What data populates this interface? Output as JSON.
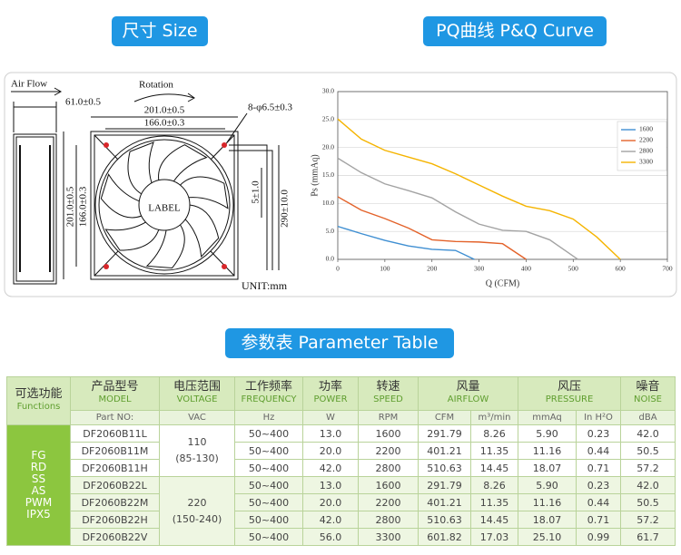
{
  "headings": {
    "size": "尺寸 Size",
    "curve": "PQ曲线 P&Q Curve",
    "table": "参数表 Parameter Table"
  },
  "drawing": {
    "air_flow": "Air Flow",
    "rotation": "Rotation",
    "depth": "61.0±0.5",
    "outer_width": "201.0±0.5",
    "hole_pitch_x": "166.0±0.3",
    "holes": "8-φ6.5±0.3",
    "outer_height": "201.0±0.5",
    "hole_pitch_y": "166.0±0.3",
    "label": "LABEL",
    "strip": "5±1.0",
    "lead_length": "290±10.0",
    "unit": "UNIT:mm"
  },
  "chart_data": {
    "type": "line",
    "x_label": "Q (CFM)",
    "y_label": "Ps  (mmAq)",
    "xlim": [
      0,
      700
    ],
    "xticks": [
      0,
      100,
      200,
      300,
      400,
      500,
      600,
      700
    ],
    "ylim": [
      0,
      30
    ],
    "yticks": [
      {
        "value": 0,
        "label": "0.0"
      },
      {
        "value": 5,
        "label": "5.0"
      },
      {
        "value": 10,
        "label": "10.0"
      },
      {
        "value": 15,
        "label": "15.0"
      },
      {
        "value": 20,
        "label": "20.0"
      },
      {
        "value": 25,
        "label": "25.0"
      },
      {
        "value": 30,
        "label": "30.0"
      }
    ],
    "grid": true,
    "legend": "right",
    "series": [
      {
        "name": "1600",
        "color": "#3f8fd2",
        "x": [
          0,
          50,
          100,
          150,
          200,
          250,
          290
        ],
        "values": [
          5.9,
          4.6,
          3.4,
          2.4,
          1.8,
          1.6,
          0
        ]
      },
      {
        "name": "2200",
        "color": "#e3622a",
        "x": [
          0,
          50,
          100,
          150,
          200,
          250,
          300,
          350,
          400
        ],
        "values": [
          11.2,
          8.8,
          7.3,
          5.6,
          3.5,
          3.2,
          3.1,
          2.8,
          0
        ]
      },
      {
        "name": "2800",
        "color": "#a3a3a3",
        "x": [
          0,
          50,
          100,
          150,
          200,
          250,
          300,
          350,
          400,
          450,
          510
        ],
        "values": [
          18.1,
          15.5,
          13.5,
          12.3,
          11,
          8.5,
          6.3,
          5.2,
          5,
          3.5,
          0
        ]
      },
      {
        "name": "3300",
        "color": "#f5b400",
        "x": [
          0,
          50,
          100,
          150,
          200,
          250,
          300,
          350,
          400,
          450,
          500,
          550,
          600
        ],
        "values": [
          25.1,
          21.5,
          19.5,
          18.3,
          17.1,
          15.3,
          13.3,
          11.3,
          9.5,
          8.7,
          7.2,
          4,
          0
        ]
      }
    ]
  },
  "table": {
    "header": [
      {
        "zh": "可选功能",
        "en": "Functions"
      },
      {
        "zh": "产品型号",
        "en": "MODEL"
      },
      {
        "zh": "电压范围",
        "en": "VOLTAGE"
      },
      {
        "zh": "工作频率",
        "en": "FREQUENCY"
      },
      {
        "zh": "功率",
        "en": "POWER"
      },
      {
        "zh": "转速",
        "en": "SPEED"
      },
      {
        "zh": "风量",
        "en": "AIRFLOW"
      },
      {
        "zh": "风压",
        "en": "PRESSURE"
      },
      {
        "zh": "噪音",
        "en": "NOISE"
      }
    ],
    "units": [
      "Part NO:",
      "VAC",
      "Hz",
      "W",
      "RPM",
      "CFM",
      "m³/min",
      "mmAq",
      "In H²O",
      "dBA"
    ],
    "functions": [
      "FG",
      "RD",
      "SS",
      "AS",
      "PWM",
      "IPX5"
    ],
    "groups": [
      {
        "volts": "110",
        "range": "(85-130)",
        "rows": [
          [
            "DF2060B11L",
            "50~400",
            "13.0",
            "1600",
            "291.79",
            "8.26",
            "5.90",
            "0.23",
            "42.0"
          ],
          [
            "DF2060B11M",
            "50~400",
            "20.0",
            "2200",
            "401.21",
            "11.35",
            "11.16",
            "0.44",
            "50.5"
          ],
          [
            "DF2060B11H",
            "50~400",
            "42.0",
            "2800",
            "510.63",
            "14.45",
            "18.07",
            "0.71",
            "57.2"
          ]
        ]
      },
      {
        "volts": "220",
        "range": "(150-240)",
        "rows": [
          [
            "DF2060B22L",
            "50~400",
            "13.0",
            "1600",
            "291.79",
            "8.26",
            "5.90",
            "0.23",
            "42.0"
          ],
          [
            "DF2060B22M",
            "50~400",
            "20.0",
            "2200",
            "401.21",
            "11.35",
            "11.16",
            "0.44",
            "50.5"
          ],
          [
            "DF2060B22H",
            "50~400",
            "42.0",
            "2800",
            "510.63",
            "14.45",
            "18.07",
            "0.71",
            "57.2"
          ],
          [
            "DF2060B22V",
            "50~400",
            "56.0",
            "3300",
            "601.82",
            "17.03",
            "25.10",
            "0.99",
            "61.7"
          ]
        ]
      }
    ]
  }
}
